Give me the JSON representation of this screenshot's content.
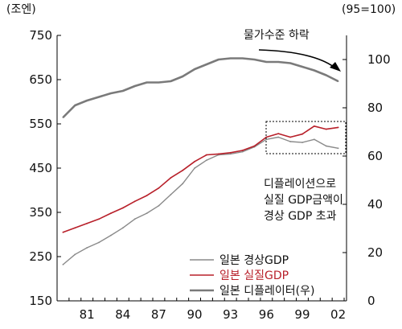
{
  "chart_data": {
    "type": "line",
    "y_unit_left": "(조엔)",
    "y_unit_right": "(95=100)",
    "x_ticks": [
      "81",
      "84",
      "87",
      "90",
      "93",
      "96",
      "99",
      "02"
    ],
    "y_left_ticks": [
      "150",
      "250",
      "350",
      "450",
      "550",
      "650",
      "750"
    ],
    "y_right_ticks": [
      "0",
      "20",
      "40",
      "60",
      "80",
      "100"
    ],
    "ylim_left": [
      150,
      750
    ],
    "ylim_right": [
      0,
      110
    ],
    "xlim": [
      1979.0,
      2003.2
    ],
    "series": [
      {
        "name": "일본 경상GDP",
        "axis": "left",
        "color": "#8a8a8a",
        "x": [
          1979.5,
          1980.5,
          1981.5,
          1982.5,
          1983.5,
          1984.5,
          1985.5,
          1986.5,
          1987.5,
          1988.5,
          1989.5,
          1990.5,
          1991.5,
          1992.5,
          1993.5,
          1994.5,
          1995.5,
          1996.5,
          1997.5,
          1998.5,
          1999.5,
          2000.5,
          2001.5,
          2002.5
        ],
        "values": [
          232,
          255,
          270,
          282,
          298,
          315,
          335,
          348,
          365,
          390,
          415,
          450,
          468,
          480,
          482,
          487,
          498,
          515,
          520,
          510,
          508,
          515,
          500,
          495
        ]
      },
      {
        "name": "일본 실질GDP",
        "axis": "left",
        "color": "#b8202a",
        "x": [
          1979.5,
          1980.5,
          1981.5,
          1982.5,
          1983.5,
          1984.5,
          1985.5,
          1986.5,
          1987.5,
          1988.5,
          1989.5,
          1990.5,
          1991.5,
          1992.5,
          1993.5,
          1994.5,
          1995.5,
          1996.5,
          1997.5,
          1998.5,
          1999.5,
          2000.5,
          2001.5,
          2002.5
        ],
        "values": [
          305,
          315,
          325,
          335,
          348,
          360,
          375,
          388,
          405,
          428,
          445,
          465,
          480,
          482,
          485,
          490,
          500,
          520,
          528,
          520,
          527,
          545,
          538,
          542
        ]
      },
      {
        "name": "일본 디플레이터(우)",
        "axis": "right",
        "color": "#7a7a7a",
        "x": [
          1979.5,
          1980.5,
          1981.5,
          1982.5,
          1983.5,
          1984.5,
          1985.5,
          1986.5,
          1987.5,
          1988.5,
          1989.5,
          1990.5,
          1991.5,
          1992.5,
          1993.5,
          1994.5,
          1995.5,
          1996.5,
          1997.5,
          1998.5,
          1999.5,
          2000.5,
          2001.5,
          2002.5
        ],
        "values": [
          76,
          81,
          83,
          84.5,
          86,
          87,
          89,
          90.5,
          90.5,
          91,
          93,
          96,
          98,
          100,
          100.5,
          100.5,
          100,
          99,
          99,
          98.5,
          97,
          95.5,
          93.5,
          91
        ]
      }
    ],
    "annotations": {
      "price_decline": "물가수준 하락",
      "deflation_note": [
        "디플레이션으로",
        "실질 GDP금액이",
        "경상 GDP 초과"
      ]
    },
    "grid": false,
    "legend_position": "bottom-right"
  }
}
